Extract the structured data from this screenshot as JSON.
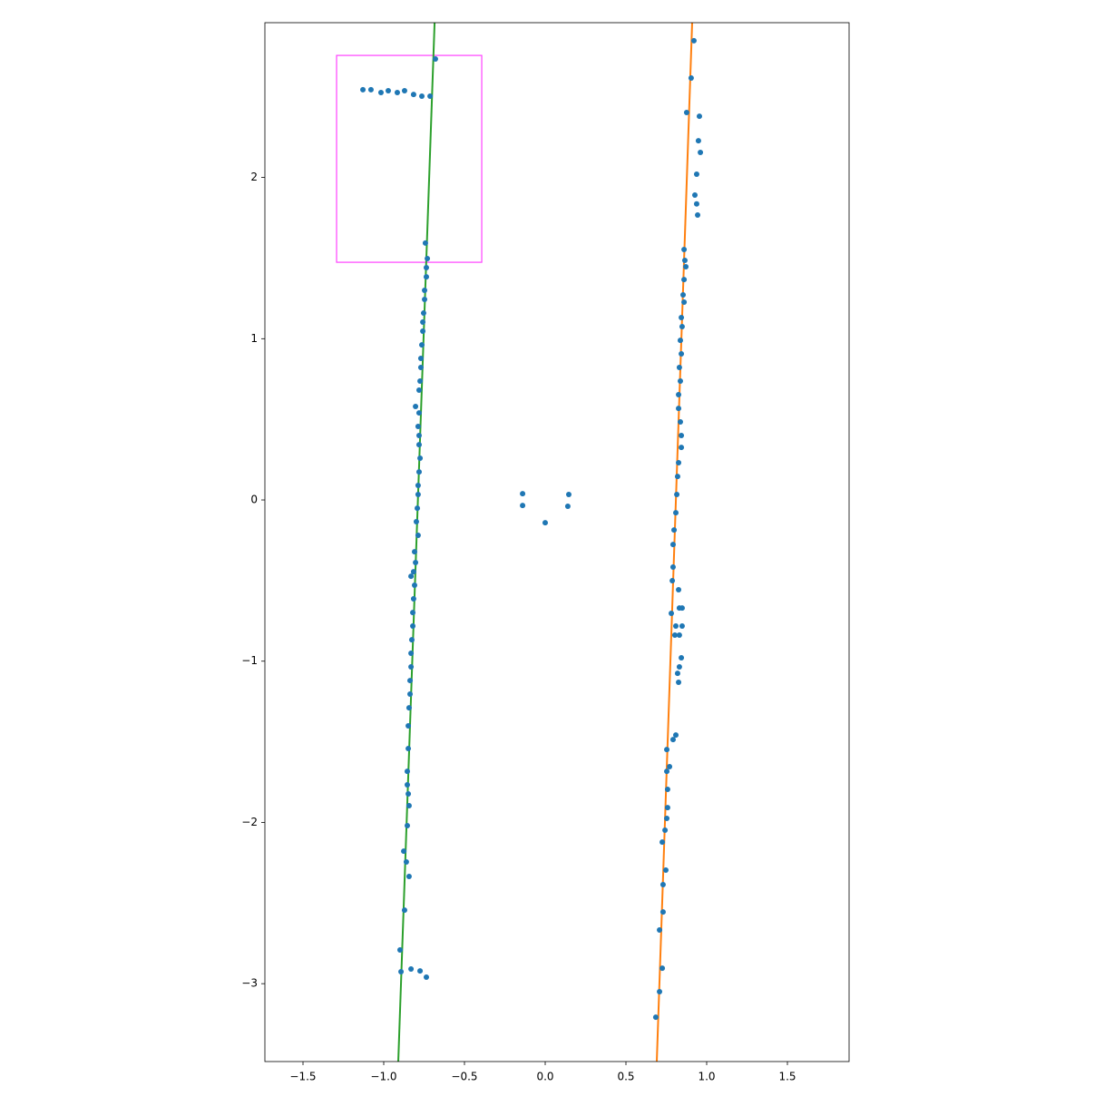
{
  "chart_data": {
    "type": "scatter",
    "xlim": [
      -1.736,
      1.882
    ],
    "ylim": [
      -3.483,
      2.96
    ],
    "xticks": [
      {
        "value": -1.5,
        "label": "−1.5"
      },
      {
        "value": -1.0,
        "label": "−1.0"
      },
      {
        "value": -0.5,
        "label": "−0.5"
      },
      {
        "value": 0.0,
        "label": "0.0"
      },
      {
        "value": 0.5,
        "label": "0.5"
      },
      {
        "value": 1.0,
        "label": "1.0"
      },
      {
        "value": 1.5,
        "label": "1.5"
      }
    ],
    "yticks": [
      {
        "value": -3,
        "label": "−3"
      },
      {
        "value": -2,
        "label": "−2"
      },
      {
        "value": -1,
        "label": "−1"
      },
      0,
      1,
      2
    ],
    "grid": false,
    "series": [
      {
        "color": "#1f77b4",
        "x": [
          -1.129,
          -1.079,
          -1.017,
          -0.972,
          -0.916,
          -0.871,
          -0.815,
          -0.764,
          -0.713,
          -0.68,
          -0.742,
          -0.73,
          -0.736,
          -0.736,
          -0.747,
          -0.747,
          -0.753,
          -0.758,
          -0.758,
          -0.764,
          -0.77,
          -0.77,
          -0.775,
          -0.781,
          -0.803,
          -0.781,
          -0.787,
          -0.781,
          -0.781,
          -0.775,
          -0.781,
          -0.787,
          -0.787,
          -0.792,
          -0.798,
          -0.787,
          -0.809,
          -0.803,
          -0.815,
          -0.831,
          -0.809,
          -0.815,
          -0.82,
          -0.82,
          -0.826,
          -0.831,
          -0.831,
          -0.837,
          -0.837,
          -0.843,
          -0.848,
          -0.848,
          -0.854,
          -0.854,
          -0.848,
          -0.843,
          -0.854,
          -0.876,
          -0.86,
          -0.843,
          -0.871,
          -0.899,
          -0.893,
          -0.831,
          -0.775,
          -0.736,
          -0.14,
          -0.14,
          0,
          0.146,
          0.14,
          0.921,
          0.904,
          0.876,
          0.955,
          0.949,
          0.961,
          0.938,
          0.927,
          0.938,
          0.944,
          0.86,
          0.865,
          0.871,
          0.86,
          0.854,
          0.86,
          0.843,
          0.848,
          0.837,
          0.843,
          0.831,
          0.837,
          0.826,
          0.826,
          0.837,
          0.843,
          0.843,
          0.826,
          0.82,
          0.815,
          0.809,
          0.798,
          0.792,
          0.792,
          0.787,
          0.826,
          0.831,
          0.848,
          0.781,
          0.809,
          0.848,
          0.803,
          0.831,
          0.843,
          0.831,
          0.82,
          0.826,
          0.809,
          0.792,
          0.753,
          0.77,
          0.753,
          0.758,
          0.758,
          0.753,
          0.742,
          0.725,
          0.747,
          0.73,
          0.73,
          0.708,
          0.725,
          0.708,
          0.685
        ],
        "values": [
          2.544,
          2.544,
          2.527,
          2.538,
          2.527,
          2.538,
          2.515,
          2.504,
          2.504,
          2.735,
          1.593,
          1.497,
          1.441,
          1.384,
          1.3,
          1.244,
          1.159,
          1.103,
          1.047,
          0.962,
          0.878,
          0.822,
          0.737,
          0.681,
          0.58,
          0.54,
          0.456,
          0.4,
          0.343,
          0.259,
          0.174,
          0.09,
          0.034,
          -0.051,
          -0.135,
          -0.219,
          -0.321,
          -0.388,
          -0.445,
          -0.473,
          -0.529,
          -0.613,
          -0.698,
          -0.782,
          -0.867,
          -0.951,
          -1.035,
          -1.12,
          -1.204,
          -1.289,
          -1.401,
          -1.542,
          -1.683,
          -1.767,
          -1.823,
          -1.896,
          -2.02,
          -2.178,
          -2.245,
          -2.335,
          -2.544,
          -2.791,
          -2.926,
          -2.909,
          -2.921,
          -2.96,
          0.039,
          -0.034,
          -0.141,
          0.034,
          -0.039,
          2.848,
          2.617,
          2.403,
          2.38,
          2.228,
          2.155,
          2.02,
          1.891,
          1.836,
          1.767,
          1.553,
          1.486,
          1.446,
          1.367,
          1.272,
          1.227,
          1.131,
          1.075,
          0.99,
          0.906,
          0.822,
          0.737,
          0.653,
          0.568,
          0.484,
          0.4,
          0.326,
          0.231,
          0.146,
          0.034,
          -0.079,
          -0.186,
          -0.276,
          -0.416,
          -0.501,
          -0.557,
          -0.67,
          -0.67,
          -0.703,
          -0.782,
          -0.782,
          -0.838,
          -0.838,
          -0.979,
          -1.035,
          -1.075,
          -1.131,
          -1.458,
          -1.486,
          -1.548,
          -1.654,
          -1.683,
          -1.795,
          -1.908,
          -1.975,
          -2.048,
          -2.122,
          -2.296,
          -2.386,
          -2.555,
          -2.667,
          -2.904,
          -3.05,
          -3.208
        ]
      }
    ],
    "lines": [
      {
        "color": "#2ca02c",
        "x": [
          -0.91,
          -0.685
        ],
        "values": [
          -3.483,
          2.96
        ]
      },
      {
        "color": "#ff7f0e",
        "x": [
          0.691,
          0.91
        ],
        "values": [
          -3.483,
          2.96
        ]
      }
    ],
    "rectangles": [
      {
        "color": "#ff40ff",
        "x": [
          -1.292,
          -0.393
        ],
        "values": [
          1.474,
          2.757
        ]
      }
    ]
  }
}
